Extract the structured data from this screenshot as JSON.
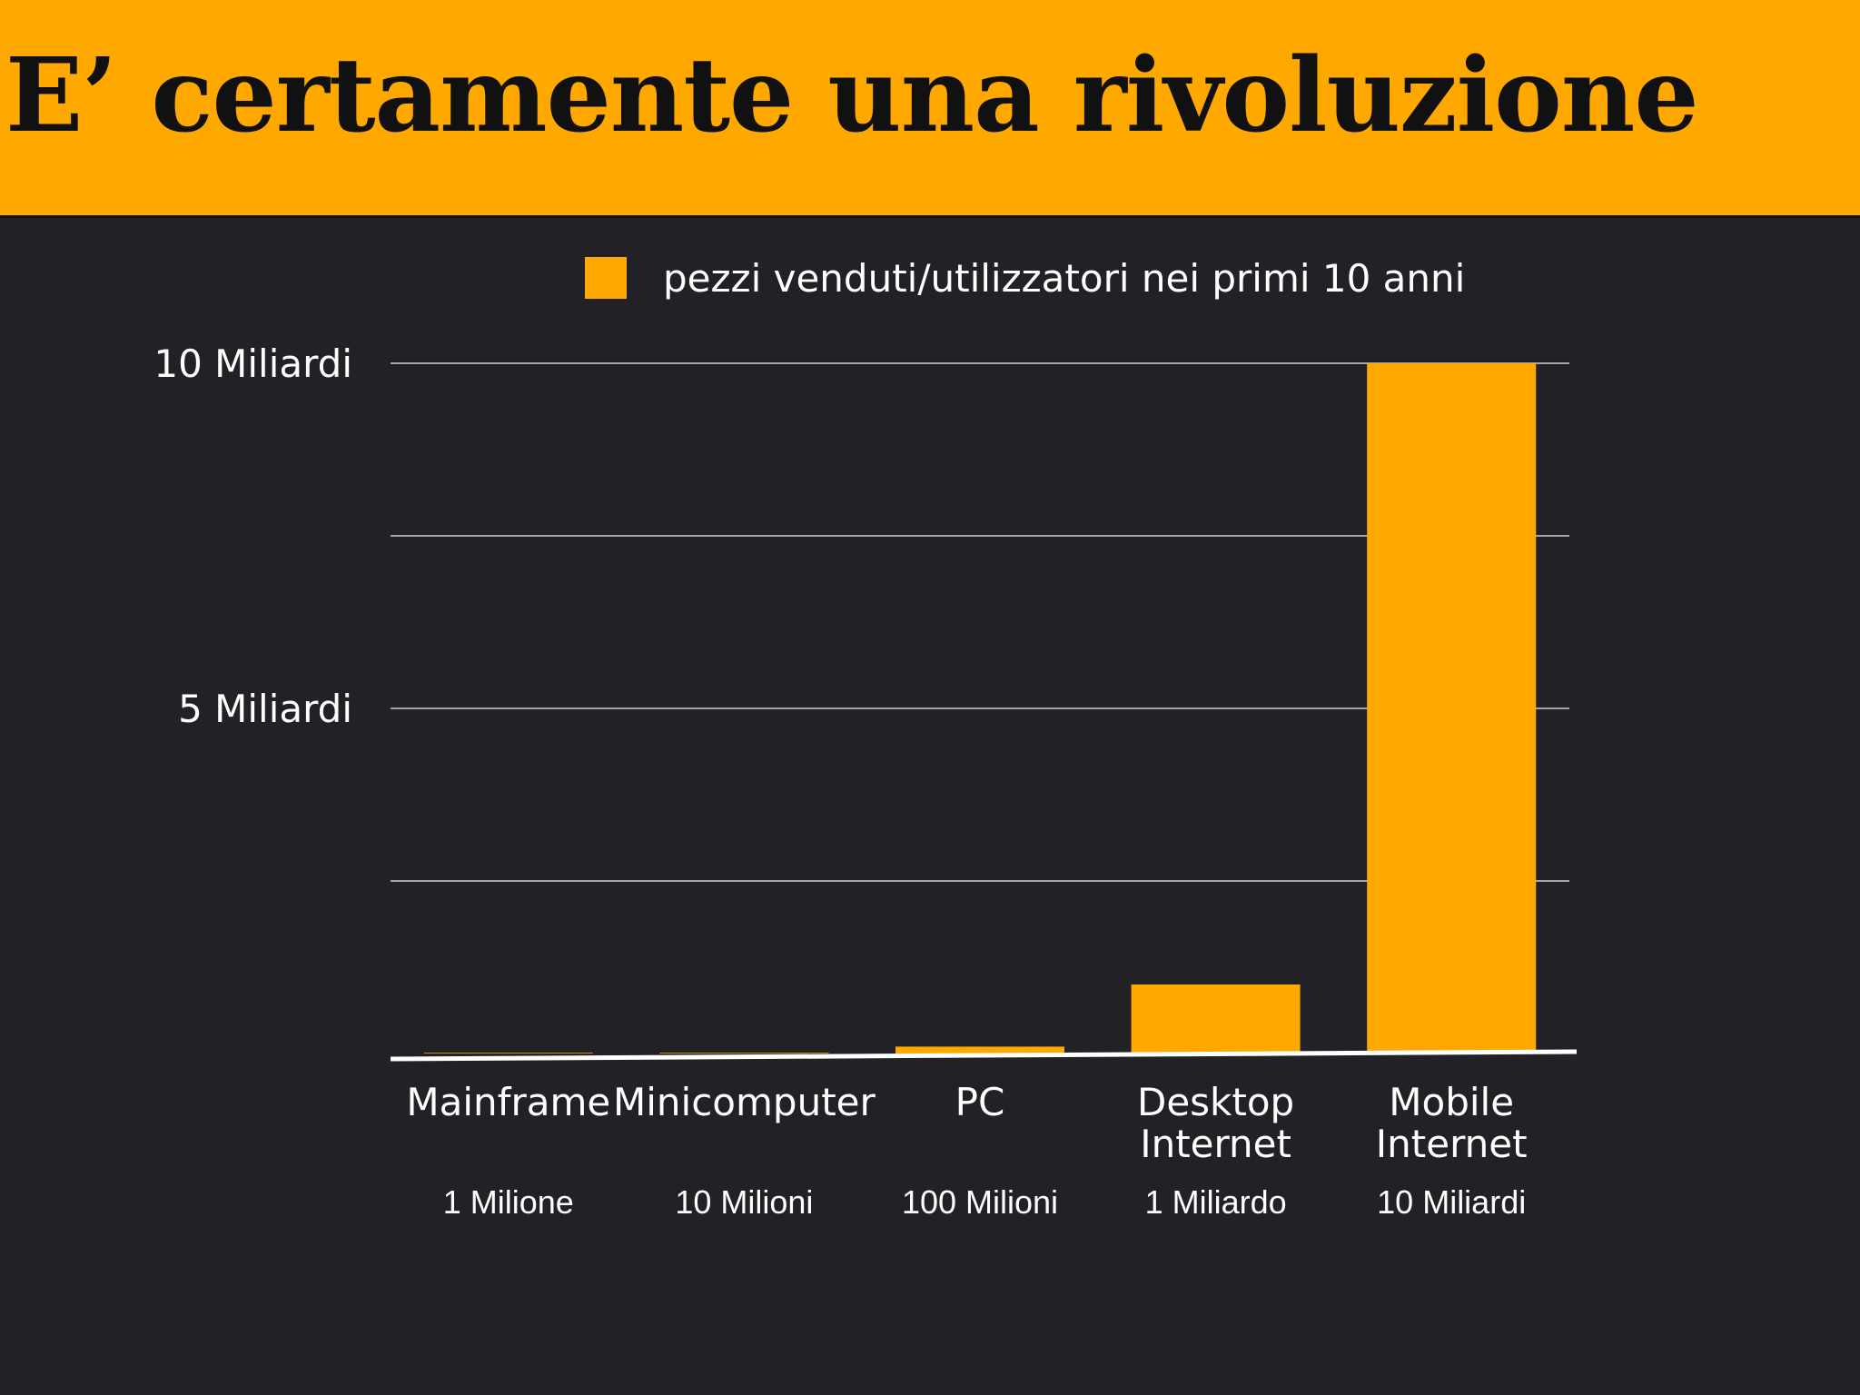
{
  "title": "E’ certamente una rivoluzione",
  "chart_data": {
    "type": "bar",
    "categories": [
      {
        "lines": [
          "Mainframe"
        ],
        "value_label": "1 Milione"
      },
      {
        "lines": [
          "Minicomputer"
        ],
        "value_label": "10 Milioni"
      },
      {
        "lines": [
          "PC"
        ],
        "value_label": "100 Milioni"
      },
      {
        "lines": [
          "Desktop",
          "Internet"
        ],
        "value_label": "1 Miliardo"
      },
      {
        "lines": [
          "Mobile",
          "Internet"
        ],
        "value_label": "10 Miliardi"
      }
    ],
    "series": [
      {
        "name": "pezzi venduti/utilizzatori nei primi 10 anni",
        "color": "#FFA800",
        "values": [
          1000000,
          10000000,
          100000000,
          1000000000,
          10000000000
        ]
      }
    ],
    "ylim": [
      0,
      10000000000
    ],
    "yticks": [
      {
        "value": 0,
        "label": ""
      },
      {
        "value": 2500000000,
        "label": ""
      },
      {
        "value": 5000000000,
        "label": "5 Miliardi"
      },
      {
        "value": 7500000000,
        "label": ""
      },
      {
        "value": 10000000000,
        "label": "10 Miliardi"
      }
    ],
    "grid": true,
    "legend_position": "top-center",
    "xlabel": "",
    "ylabel": ""
  }
}
